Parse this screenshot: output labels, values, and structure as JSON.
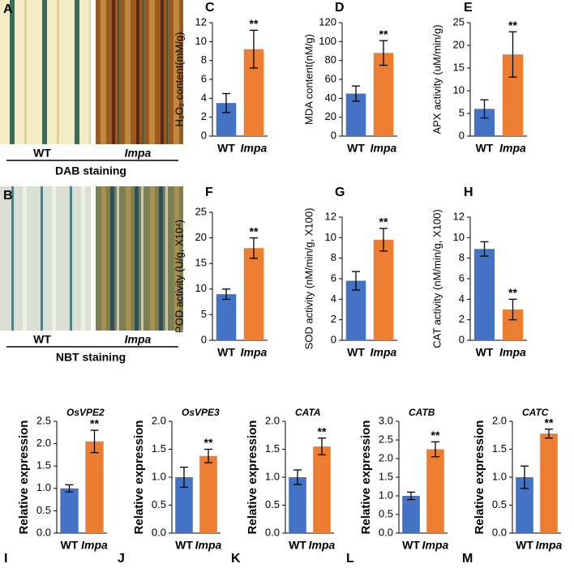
{
  "photos": [
    {
      "letter": "A",
      "labels": [
        "WT",
        "Impa"
      ],
      "caption": "DAB staining"
    },
    {
      "letter": "B",
      "labels": [
        "WT",
        "Impa"
      ],
      "caption": "NBT staining"
    }
  ],
  "chart_data": [
    {
      "type": "bar",
      "letter": "C",
      "ylabel": "H₂O₂ content(mM/g)",
      "categories": [
        "WT",
        "Impa"
      ],
      "values": [
        3.5,
        9.2
      ],
      "errors": [
        1.0,
        2.0
      ],
      "colors": [
        "#4472c4",
        "#ed7d31"
      ],
      "annotations": [
        null,
        "**"
      ],
      "ylim": [
        0,
        12
      ],
      "yticks": [
        0,
        2,
        4,
        6,
        8,
        10,
        12
      ]
    },
    {
      "type": "bar",
      "letter": "D",
      "ylabel": "MDA content(nM/g)",
      "categories": [
        "WT",
        "Impa"
      ],
      "values": [
        45,
        88
      ],
      "errors": [
        8,
        13
      ],
      "colors": [
        "#4472c4",
        "#ed7d31"
      ],
      "annotations": [
        null,
        "**"
      ],
      "ylim": [
        0,
        120
      ],
      "yticks": [
        0,
        20,
        40,
        60,
        80,
        100,
        120
      ]
    },
    {
      "type": "bar",
      "letter": "E",
      "ylabel": "APX activity (uM/min/g)",
      "categories": [
        "WT",
        "Impa"
      ],
      "values": [
        6,
        18
      ],
      "errors": [
        2,
        5
      ],
      "colors": [
        "#4472c4",
        "#ed7d31"
      ],
      "annotations": [
        null,
        "**"
      ],
      "ylim": [
        0,
        25
      ],
      "yticks": [
        0,
        5,
        10,
        15,
        20,
        25
      ]
    },
    {
      "type": "bar",
      "letter": "F",
      "ylabel": "POD activity (U/g, X10⁴)",
      "categories": [
        "WT",
        "Impa"
      ],
      "values": [
        9,
        18
      ],
      "errors": [
        1,
        2
      ],
      "colors": [
        "#4472c4",
        "#ed7d31"
      ],
      "annotations": [
        null,
        "**"
      ],
      "ylim": [
        0,
        25
      ],
      "yticks": [
        0,
        5,
        10,
        15,
        20,
        25
      ]
    },
    {
      "type": "bar",
      "letter": "G",
      "ylabel": "SOD activity (nM/min/g, X100)",
      "categories": [
        "WT",
        "Impa"
      ],
      "values": [
        5.8,
        9.8
      ],
      "errors": [
        0.9,
        1.1
      ],
      "colors": [
        "#4472c4",
        "#ed7d31"
      ],
      "annotations": [
        null,
        "**"
      ],
      "ylim": [
        0,
        12
      ],
      "yticks": [
        0,
        2,
        4,
        6,
        8,
        10,
        12
      ]
    },
    {
      "type": "bar",
      "letter": "H",
      "ylabel": "CAT activity (nM/min/g, X100)",
      "categories": [
        "WT",
        "Impa"
      ],
      "values": [
        8.9,
        3.0
      ],
      "errors": [
        0.7,
        1.0
      ],
      "colors": [
        "#4472c4",
        "#ed7d31"
      ],
      "annotations": [
        null,
        "**"
      ],
      "ylim": [
        0,
        12
      ],
      "yticks": [
        0,
        2,
        4,
        6,
        8,
        10,
        12
      ]
    },
    {
      "type": "bar",
      "letter": "I",
      "gene": "OsVPE2",
      "ylabel": "Relative expression",
      "categories": [
        "WT",
        "Impa"
      ],
      "values": [
        1.0,
        2.05
      ],
      "errors": [
        0.08,
        0.25
      ],
      "colors": [
        "#4472c4",
        "#ed7d31"
      ],
      "annotations": [
        null,
        "**"
      ],
      "ylim": [
        0,
        2.5
      ],
      "yticks": [
        {
          "value": 0,
          "label": "0.0"
        },
        {
          "value": 0.5,
          "label": "0.5"
        },
        {
          "value": 1,
          "label": "1.0"
        },
        {
          "value": 1.5,
          "label": "1.5"
        },
        {
          "value": 2,
          "label": "2.0"
        },
        {
          "value": 2.5,
          "label": "2.5"
        }
      ]
    },
    {
      "type": "bar",
      "letter": "J",
      "gene": "OsVPE3",
      "ylabel": "Relative expression",
      "categories": [
        "WT",
        "Impa"
      ],
      "values": [
        1.0,
        1.38
      ],
      "errors": [
        0.18,
        0.12
      ],
      "colors": [
        "#4472c4",
        "#ed7d31"
      ],
      "annotations": [
        null,
        "**"
      ],
      "ylim": [
        0,
        2
      ],
      "yticks": [
        {
          "value": 0,
          "label": "0.0"
        },
        {
          "value": 0.5,
          "label": "0.5"
        },
        {
          "value": 1,
          "label": "1.0"
        },
        {
          "value": 1.5,
          "label": "1.5"
        },
        {
          "value": 2,
          "label": "2.0"
        }
      ]
    },
    {
      "type": "bar",
      "letter": "K",
      "gene": "CATA",
      "ylabel": "Relative expression",
      "categories": [
        "WT",
        "Impa"
      ],
      "values": [
        1.0,
        1.55
      ],
      "errors": [
        0.13,
        0.15
      ],
      "colors": [
        "#4472c4",
        "#ed7d31"
      ],
      "annotations": [
        null,
        "**"
      ],
      "ylim": [
        0,
        2
      ],
      "yticks": [
        {
          "value": 0,
          "label": "0.0"
        },
        {
          "value": 0.5,
          "label": "0.5"
        },
        {
          "value": 1,
          "label": "1.0"
        },
        {
          "value": 1.5,
          "label": "1.5"
        },
        {
          "value": 2,
          "label": "2.0"
        }
      ]
    },
    {
      "type": "bar",
      "letter": "L",
      "gene": "CATB",
      "ylabel": "Relative expression",
      "categories": [
        "WT",
        "Impa"
      ],
      "values": [
        1.0,
        2.25
      ],
      "errors": [
        0.1,
        0.2
      ],
      "colors": [
        "#4472c4",
        "#ed7d31"
      ],
      "annotations": [
        null,
        "**"
      ],
      "ylim": [
        0,
        3
      ],
      "yticks": [
        {
          "value": 0,
          "label": "0.0"
        },
        {
          "value": 0.5,
          "label": "0.5"
        },
        {
          "value": 1,
          "label": "1.0"
        },
        {
          "value": 1.5,
          "label": "1.5"
        },
        {
          "value": 2,
          "label": "2.0"
        },
        {
          "value": 2.5,
          "label": "2.5"
        },
        {
          "value": 3,
          "label": "3.0"
        }
      ]
    },
    {
      "type": "bar",
      "letter": "M",
      "gene": "CATC",
      "ylabel": "Relative expression",
      "categories": [
        "WT",
        "Impa"
      ],
      "values": [
        1.0,
        1.78
      ],
      "errors": [
        0.2,
        0.08
      ],
      "colors": [
        "#4472c4",
        "#ed7d31"
      ],
      "annotations": [
        null,
        "**"
      ],
      "ylim": [
        0,
        2
      ],
      "yticks": [
        {
          "value": 0,
          "label": "0.0"
        },
        {
          "value": 0.5,
          "label": "0.5"
        },
        {
          "value": 1,
          "label": "1.0"
        },
        {
          "value": 1.5,
          "label": "1.5"
        },
        {
          "value": 2,
          "label": "2.0"
        }
      ]
    }
  ]
}
